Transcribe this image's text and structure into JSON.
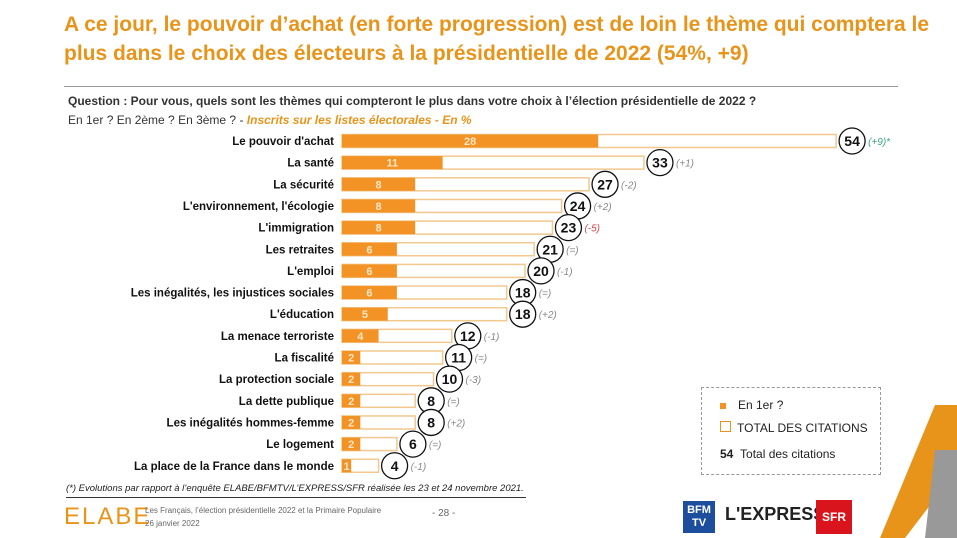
{
  "header": {
    "title": "A ce jour, le pouvoir d’achat (en forte progression) est de loin le thème qui compte­ra le plus dans le choix des électeurs à la présidentielle de 2022 (54%, +9)",
    "question": "Question : Pour vous, quels sont les thèmes qui compteront le plus dans votre choix à l’élection présidentielle de 2022 ?",
    "sub": "En 1er ? En 2ème ? En 3ème ? - ",
    "sub_emph": "Inscrits sur les listes électorales - En %"
  },
  "chart_data": {
    "type": "bar",
    "orientation": "horizontal",
    "categories": [
      "Le pouvoir d'achat",
      "La santé",
      "La sécurité",
      "L'environnement, l'écologie",
      "L'immigration",
      "Les retraites",
      "L'emploi",
      "Les inégalités, les injustices sociales",
      "L'éducation",
      "La menace terroriste",
      "La fiscalité",
      "La protection sociale",
      "La dette publique",
      "Les inégalités hommes-femme",
      "Le logement",
      "La place de la France dans le monde"
    ],
    "series": [
      {
        "name": "En 1er ?",
        "values": [
          28,
          11,
          8,
          8,
          8,
          6,
          6,
          6,
          5,
          4,
          2,
          2,
          2,
          2,
          2,
          1
        ],
        "color": "#F39325"
      },
      {
        "name": "TOTAL DES CITATIONS",
        "values": [
          54,
          33,
          27,
          24,
          23,
          21,
          20,
          18,
          18,
          12,
          11,
          10,
          8,
          8,
          6,
          4
        ],
        "color": "#F8D9A8"
      }
    ],
    "evolutions": [
      "(+9)*",
      "(+1)",
      "(-2)",
      "(+2)",
      "(-5)",
      "(=)",
      "(-1)",
      "(=)",
      "(+2)",
      "(-1)",
      "(=)",
      "(-3)",
      "(=)",
      "(+2)",
      "(=)",
      "(-1)"
    ],
    "evolution_colors": {
      "positive_highlight": "#3aa57a",
      "negative_highlight": "#d9434e",
      "default": "#888888"
    },
    "legend": {
      "first": "En 1er ?",
      "total": "TOTAL DES CITATIONS",
      "circle_value": "54",
      "circle_label": "Total des citations"
    }
  },
  "footer": {
    "note": "(*) Evolutions par rapport à l’enquête ELABE/BFMTV/L’EXPRESS/SFR réalisée les 23 et 24 novembre 2021.",
    "brand": "ELABE",
    "study": "Les Français, l’élection présidentielle 2022 et la Primaire Populaire",
    "date": "26 janvier 2022",
    "page": "- 28 -",
    "logos": [
      "BFM TV",
      "L'EXPRESS",
      "SFR"
    ]
  }
}
